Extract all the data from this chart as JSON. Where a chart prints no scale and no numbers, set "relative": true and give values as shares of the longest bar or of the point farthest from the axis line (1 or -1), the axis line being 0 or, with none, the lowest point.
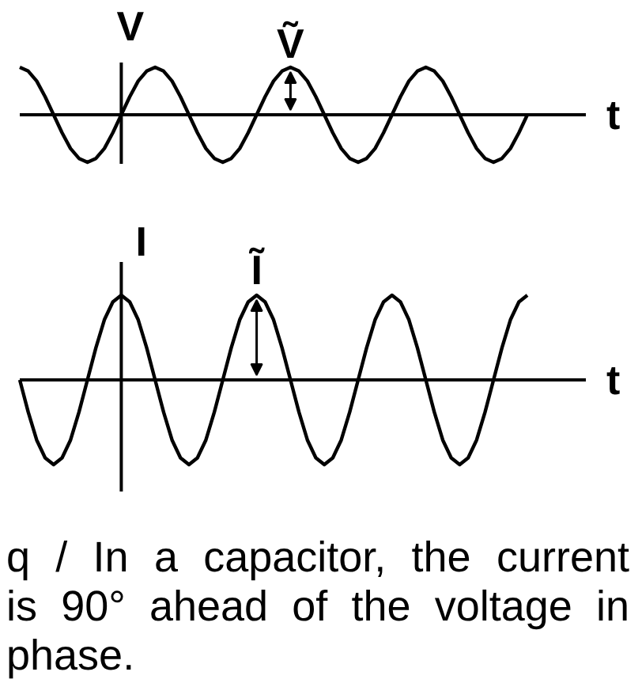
{
  "chart_data": [
    {
      "type": "line",
      "relative": true,
      "xlabel": "t",
      "ylabel": "V",
      "categories": [
        null,
        null,
        null,
        null,
        null,
        null,
        null,
        null,
        null,
        null,
        null,
        null,
        null,
        null,
        null,
        null,
        null,
        null,
        null,
        null,
        null,
        null,
        null,
        null,
        null,
        null,
        null,
        null,
        null,
        null,
        null,
        null,
        null,
        null,
        null,
        null,
        null,
        null,
        null,
        null,
        null,
        null,
        null,
        null,
        null,
        null,
        null,
        null,
        null,
        null,
        null,
        null,
        null,
        null,
        null,
        null,
        null,
        null,
        null,
        null,
        null
      ],
      "series": [
        {
          "color": "#000000",
          "values": [
            1,
            0.92,
            0.71,
            0.38,
            0,
            -0.38,
            -0.71,
            -0.92,
            -1,
            -0.92,
            -0.71,
            -0.38,
            0,
            0.38,
            0.71,
            0.92,
            1,
            0.92,
            0.71,
            0.38,
            0,
            -0.38,
            -0.71,
            -0.92,
            -1,
            -0.92,
            -0.71,
            -0.38,
            0,
            0.38,
            0.71,
            0.92,
            1,
            0.92,
            0.71,
            0.38,
            0,
            -0.38,
            -0.71,
            -0.92,
            -1,
            -0.92,
            -0.71,
            -0.38,
            0,
            0.38,
            0.71,
            0.92,
            1,
            0.92,
            0.71,
            0.38,
            0,
            -0.38,
            -0.71,
            -0.92,
            -1,
            -0.92,
            -0.71,
            -0.38,
            0
          ]
        }
      ],
      "annotations": [
        {
          "text": "Ṽ",
          "y": 1
        }
      ]
    },
    {
      "type": "line",
      "relative": true,
      "xlabel": "t",
      "ylabel": "I",
      "categories": [
        null,
        null,
        null,
        null,
        null,
        null,
        null,
        null,
        null,
        null,
        null,
        null,
        null,
        null,
        null,
        null,
        null,
        null,
        null,
        null,
        null,
        null,
        null,
        null,
        null,
        null,
        null,
        null,
        null,
        null,
        null,
        null,
        null,
        null,
        null,
        null,
        null,
        null,
        null,
        null,
        null,
        null,
        null,
        null,
        null,
        null,
        null,
        null,
        null,
        null,
        null,
        null,
        null,
        null,
        null,
        null,
        null,
        null,
        null,
        null,
        null
      ],
      "series": [
        {
          "color": "#000000",
          "values": [
            0,
            -0.38,
            -0.71,
            -0.92,
            -1,
            -0.92,
            -0.71,
            -0.38,
            0,
            0.38,
            0.71,
            0.92,
            1,
            0.92,
            0.71,
            0.38,
            0,
            -0.38,
            -0.71,
            -0.92,
            -1,
            -0.92,
            -0.71,
            -0.38,
            0,
            0.38,
            0.71,
            0.92,
            1,
            0.92,
            0.71,
            0.38,
            0,
            -0.38,
            -0.71,
            -0.92,
            -1,
            -0.92,
            -0.71,
            -0.38,
            0,
            0.38,
            0.71,
            0.92,
            1,
            0.92,
            0.71,
            0.38,
            0,
            -0.38,
            -0.71,
            -0.92,
            -1,
            -0.92,
            -0.71,
            -0.38,
            0,
            0.38,
            0.71,
            0.92,
            1
          ]
        }
      ],
      "annotations": [
        {
          "text": "Ĩ",
          "y": 1
        },
        "q / In a capacitor, the current is 90° ahead of the voltage in phase."
      ]
    }
  ]
}
